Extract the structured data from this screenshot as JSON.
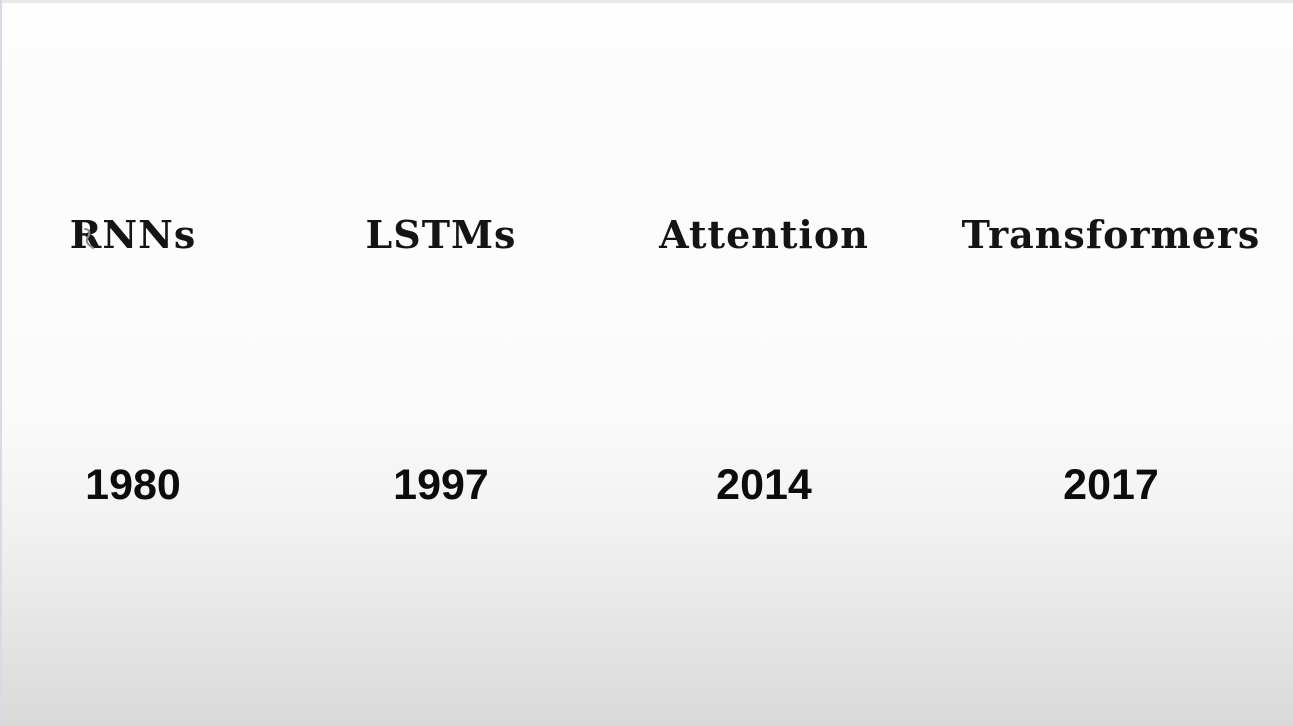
{
  "timeline": {
    "items": [
      {
        "term": "RNNs",
        "year": "1980"
      },
      {
        "term": "LSTMs",
        "year": "1997"
      },
      {
        "term": "Attention",
        "year": "2014"
      },
      {
        "term": "Transformers",
        "year": "2017"
      }
    ]
  },
  "colors": {
    "text": "#141414",
    "background_top": "#fdfdfd",
    "background_bottom": "#d9d9d9"
  },
  "icons": {
    "cursor": "mouse-pointer-icon"
  }
}
